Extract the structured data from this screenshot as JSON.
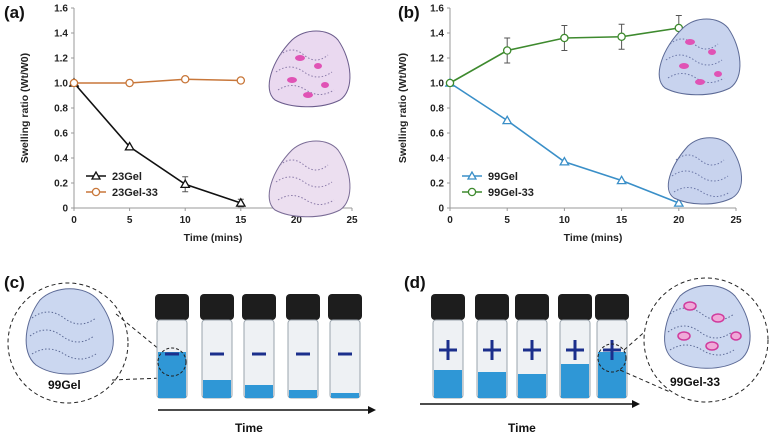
{
  "panels": {
    "a": "(a)",
    "b": "(b)",
    "c": "(c)",
    "d": "(d)"
  },
  "chart_data": [
    {
      "type": "line",
      "panel": "(a)",
      "xlabel": "Time (mins)",
      "ylabel": "Swelling ratio (Wt/W0)",
      "xlim": [
        0,
        25
      ],
      "ylim": [
        0,
        1.6
      ],
      "xticks": [
        "0",
        "5",
        "10",
        "15",
        "20",
        "25"
      ],
      "yticks": [
        "0",
        "0.2",
        "0.4",
        "0.6",
        "0.8",
        "1.0",
        "1.2",
        "1.4",
        "1.6"
      ],
      "legend_position": "bottom-left",
      "series": [
        {
          "name": "23Gel",
          "color": "#111111",
          "marker": "triangle",
          "x": [
            0,
            5,
            10,
            15
          ],
          "values": [
            1.0,
            0.49,
            0.19,
            0.04
          ],
          "errors": [
            0,
            0,
            0.06,
            0.03
          ]
        },
        {
          "name": "23Gel-33",
          "color": "#c8773a",
          "marker": "circle",
          "x": [
            0,
            5,
            10,
            15
          ],
          "values": [
            1.0,
            1.0,
            1.03,
            1.02
          ],
          "errors": [
            0,
            0,
            0,
            0
          ]
        }
      ]
    },
    {
      "type": "line",
      "panel": "(b)",
      "xlabel": "Time (mins)",
      "ylabel": "Swelling ratio (Wt/W0)",
      "xlim": [
        0,
        25
      ],
      "ylim": [
        0,
        1.6
      ],
      "xticks": [
        "0",
        "5",
        "10",
        "15",
        "20",
        "25"
      ],
      "yticks": [
        "0",
        "0.2",
        "0.4",
        "0.6",
        "0.8",
        "1.0",
        "1.2",
        "1.4",
        "1.6"
      ],
      "legend_position": "bottom-left",
      "series": [
        {
          "name": "99Gel",
          "color": "#3a8fc8",
          "marker": "triangle",
          "x": [
            0,
            5,
            10,
            15,
            20
          ],
          "values": [
            1.0,
            0.7,
            0.37,
            0.22,
            0.04
          ],
          "errors": [
            0,
            0,
            0,
            0,
            0
          ]
        },
        {
          "name": "99Gel-33",
          "color": "#3e8a2e",
          "marker": "circle",
          "x": [
            0,
            5,
            10,
            15,
            20
          ],
          "values": [
            1.0,
            1.26,
            1.36,
            1.37,
            1.44
          ],
          "errors": [
            0,
            0.1,
            0.1,
            0.1,
            0.1
          ]
        }
      ]
    }
  ],
  "photos": {
    "c": {
      "label": "99Gel",
      "arrow_label": "Time"
    },
    "d": {
      "label": "99Gel-33",
      "arrow_label": "Time"
    }
  }
}
